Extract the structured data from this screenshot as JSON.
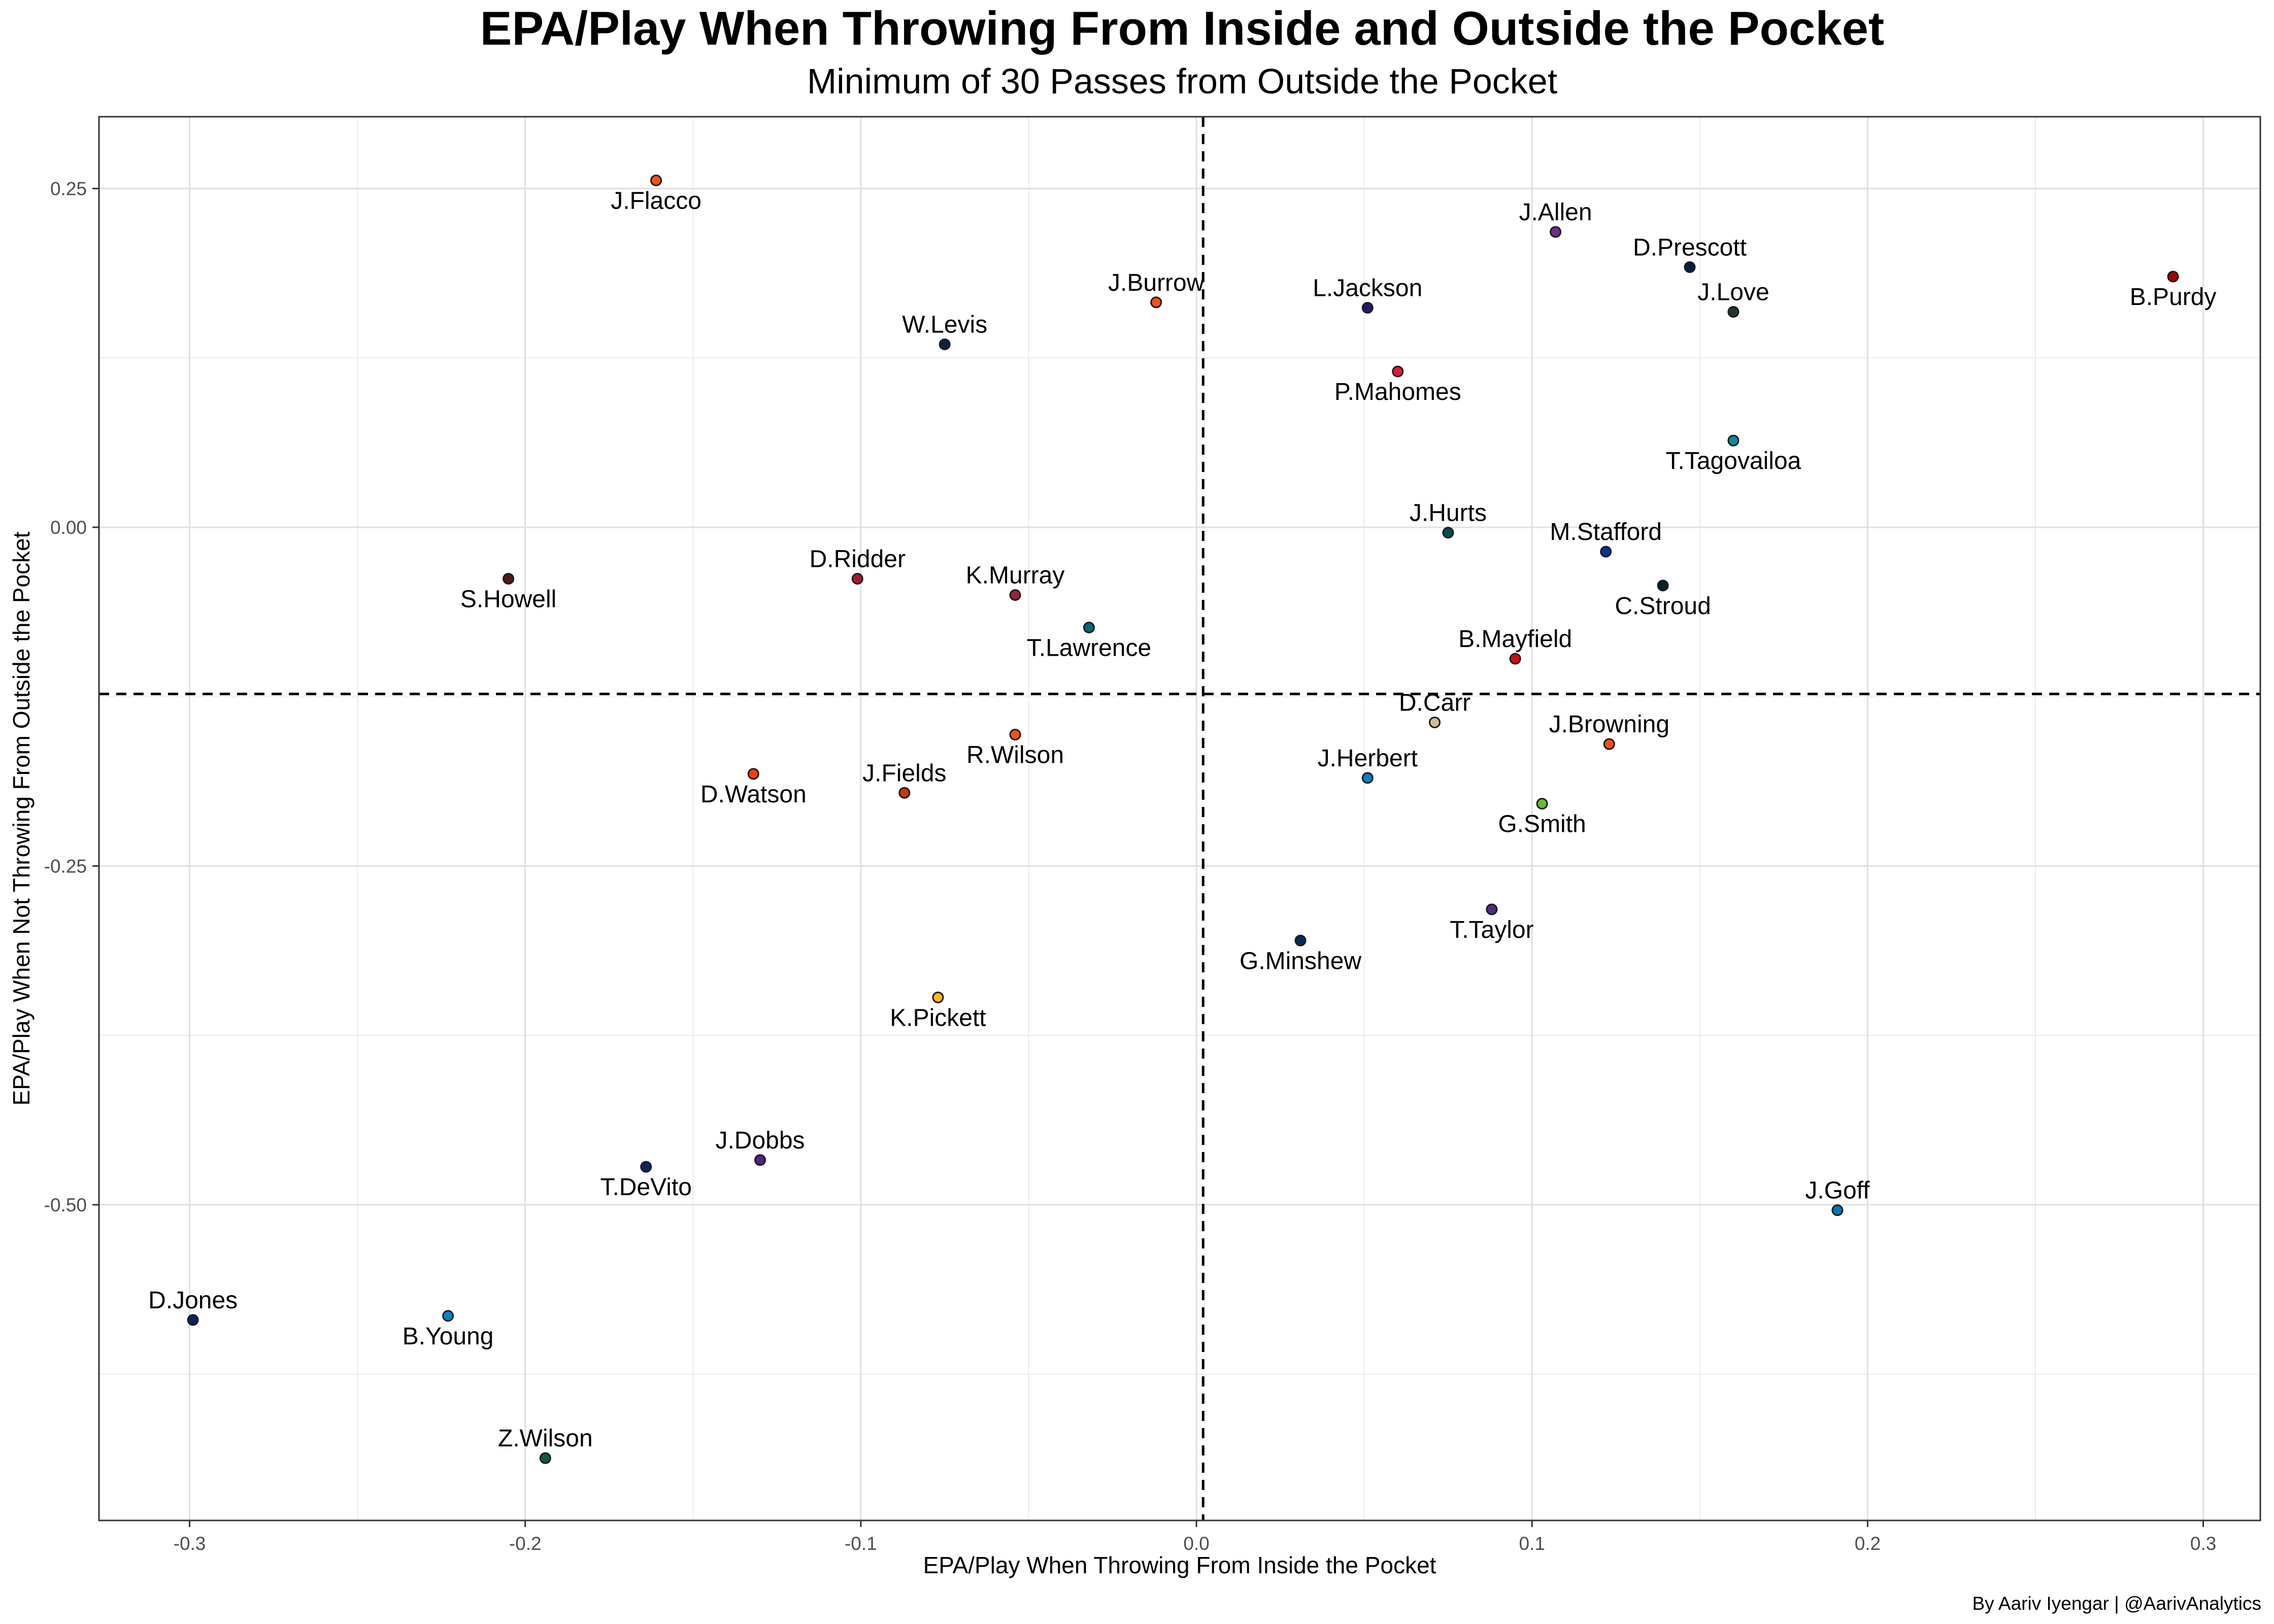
{
  "chart_data": {
    "type": "scatter",
    "title": "EPA/Play When Throwing From Inside and Outside the Pocket",
    "subtitle": "Minimum of 30 Passes from Outside the Pocket",
    "xlabel": "EPA/Play When Throwing From Inside the Pocket",
    "ylabel": "EPA/Play When Not Throwing From Outside the Pocket",
    "caption": "By Aariv Iyengar | @AarivAnalytics",
    "xlim": [
      -0.327,
      0.317
    ],
    "ylim": [
      -0.733,
      0.303
    ],
    "x_ticks": [
      -0.3,
      -0.2,
      -0.1,
      0.0,
      0.1,
      0.2,
      0.3
    ],
    "x_tick_labels": [
      "-0.3",
      "-0.2",
      "-0.1",
      "0.0",
      "0.1",
      "0.2",
      "0.3"
    ],
    "y_ticks": [
      0.25,
      0.0,
      -0.25,
      -0.5
    ],
    "y_tick_labels": [
      "0.25",
      "0.00",
      "-0.25",
      "-0.50"
    ],
    "grid": true,
    "reference_lines": {
      "vline_x": 0.002,
      "hline_y": -0.123,
      "style": "dashed"
    },
    "points": [
      {
        "name": "J.Flacco",
        "x": -0.161,
        "y": 0.256,
        "color": "#fb4f14",
        "label_pos": "below"
      },
      {
        "name": "J.Allen",
        "x": 0.107,
        "y": 0.218,
        "color": "#702f8a",
        "label_pos": "above"
      },
      {
        "name": "D.Prescott",
        "x": 0.147,
        "y": 0.192,
        "color": "#041e42",
        "label_pos": "above"
      },
      {
        "name": "B.Purdy",
        "x": 0.291,
        "y": 0.185,
        "color": "#aa0000",
        "label_pos": "below"
      },
      {
        "name": "J.Burrow",
        "x": -0.012,
        "y": 0.166,
        "color": "#fb4f14",
        "label_pos": "above"
      },
      {
        "name": "L.Jackson",
        "x": 0.051,
        "y": 0.162,
        "color": "#241773",
        "label_pos": "above"
      },
      {
        "name": "J.Love",
        "x": 0.16,
        "y": 0.159,
        "color": "#203731",
        "label_pos": "above"
      },
      {
        "name": "W.Levis",
        "x": -0.075,
        "y": 0.135,
        "color": "#0c2340",
        "label_pos": "above"
      },
      {
        "name": "P.Mahomes",
        "x": 0.06,
        "y": 0.115,
        "color": "#e31837",
        "label_pos": "below"
      },
      {
        "name": "T.Tagovailoa",
        "x": 0.16,
        "y": 0.064,
        "color": "#008e97",
        "label_pos": "below"
      },
      {
        "name": "J.Hurts",
        "x": 0.075,
        "y": -0.004,
        "color": "#004c54",
        "label_pos": "above"
      },
      {
        "name": "M.Stafford",
        "x": 0.122,
        "y": -0.018,
        "color": "#003594",
        "label_pos": "above"
      },
      {
        "name": "S.Howell",
        "x": -0.205,
        "y": -0.038,
        "color": "#5a1414",
        "label_pos": "below"
      },
      {
        "name": "D.Ridder",
        "x": -0.101,
        "y": -0.038,
        "color": "#a71930",
        "label_pos": "above"
      },
      {
        "name": "C.Stroud",
        "x": 0.139,
        "y": -0.043,
        "color": "#03202f",
        "label_pos": "below"
      },
      {
        "name": "K.Murray",
        "x": -0.054,
        "y": -0.05,
        "color": "#97233f",
        "label_pos": "above"
      },
      {
        "name": "T.Lawrence",
        "x": -0.032,
        "y": -0.074,
        "color": "#006778",
        "label_pos": "below"
      },
      {
        "name": "B.Mayfield",
        "x": 0.095,
        "y": -0.097,
        "color": "#d50a0a",
        "label_pos": "above"
      },
      {
        "name": "D.Carr",
        "x": 0.071,
        "y": -0.144,
        "color": "#d3bc8d",
        "label_pos": "above"
      },
      {
        "name": "R.Wilson",
        "x": -0.054,
        "y": -0.153,
        "color": "#fb4f14",
        "label_pos": "below"
      },
      {
        "name": "J.Browning",
        "x": 0.123,
        "y": -0.16,
        "color": "#fb4f14",
        "label_pos": "above"
      },
      {
        "name": "D.Watson",
        "x": -0.132,
        "y": -0.182,
        "color": "#ff3c00",
        "label_pos": "below"
      },
      {
        "name": "J.Herbert",
        "x": 0.051,
        "y": -0.185,
        "color": "#0080c6",
        "label_pos": "above"
      },
      {
        "name": "J.Fields",
        "x": -0.087,
        "y": -0.196,
        "color": "#c83803",
        "label_pos": "above"
      },
      {
        "name": "G.Smith",
        "x": 0.103,
        "y": -0.204,
        "color": "#69be28",
        "label_pos": "below"
      },
      {
        "name": "T.Taylor",
        "x": 0.088,
        "y": -0.282,
        "color": "#4b2e83",
        "label_pos": "below"
      },
      {
        "name": "G.Minshew",
        "x": 0.031,
        "y": -0.305,
        "color": "#002c5f",
        "label_pos": "below"
      },
      {
        "name": "K.Pickett",
        "x": -0.077,
        "y": -0.347,
        "color": "#ffb612",
        "label_pos": "below"
      },
      {
        "name": "T.DeVito",
        "x": -0.164,
        "y": -0.472,
        "color": "#0b2265",
        "label_pos": "below"
      },
      {
        "name": "J.Dobbs",
        "x": -0.13,
        "y": -0.467,
        "color": "#4f2683",
        "label_pos": "above"
      },
      {
        "name": "J.Goff",
        "x": 0.191,
        "y": -0.504,
        "color": "#0076b6",
        "label_pos": "above"
      },
      {
        "name": "D.Jones",
        "x": -0.299,
        "y": -0.585,
        "color": "#0b2265",
        "label_pos": "above"
      },
      {
        "name": "B.Young",
        "x": -0.223,
        "y": -0.582,
        "color": "#0085ca",
        "label_pos": "below"
      },
      {
        "name": "Z.Wilson",
        "x": -0.194,
        "y": -0.687,
        "color": "#125740",
        "label_pos": "above"
      }
    ]
  }
}
